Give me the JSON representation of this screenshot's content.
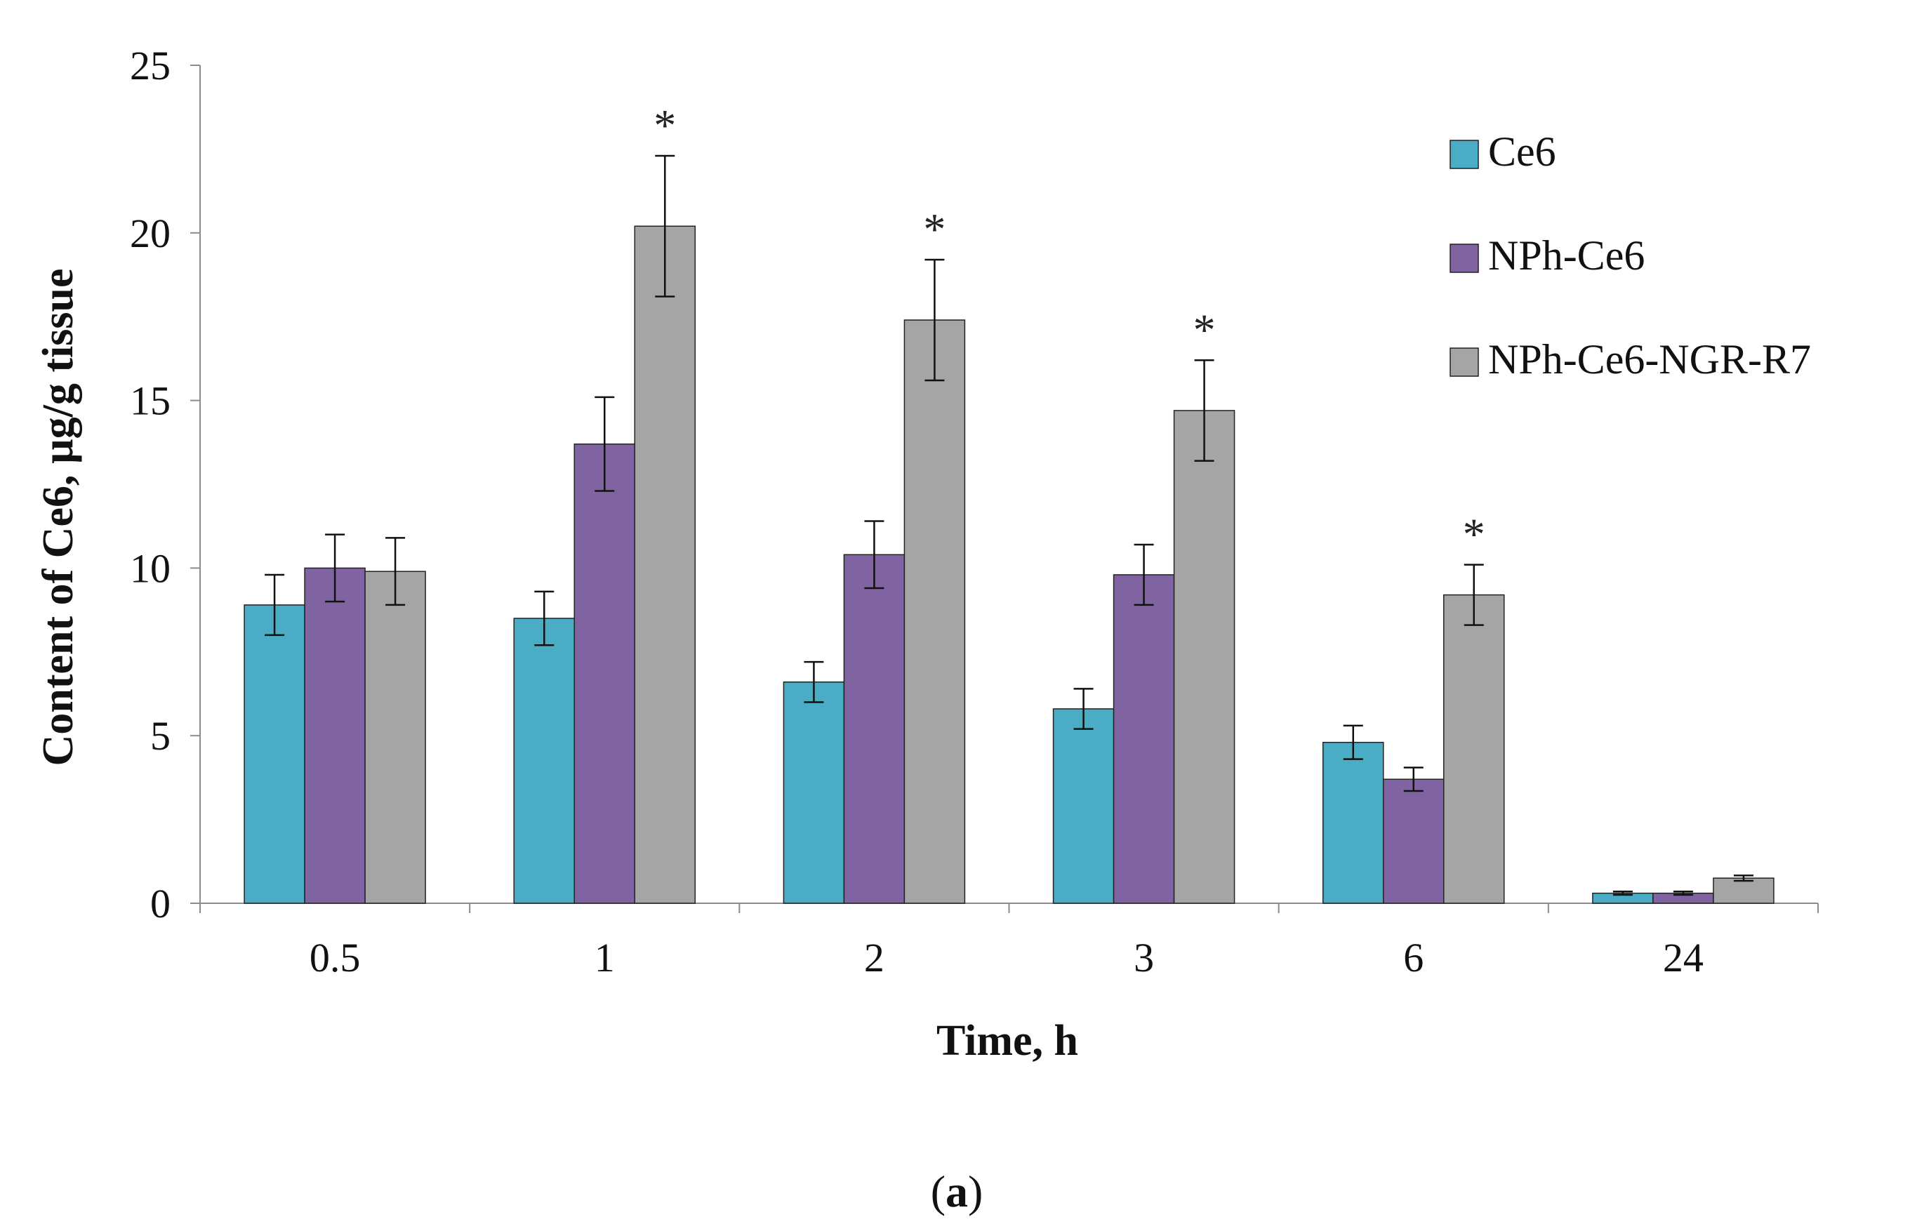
{
  "chart_data": {
    "type": "bar",
    "title": "",
    "xlabel": "Time, h",
    "ylabel": "Content of Ce6, µg/g tissue",
    "categories": [
      "0.5",
      "1",
      "2",
      "3",
      "6",
      "24"
    ],
    "ylim": [
      0,
      25
    ],
    "yticks": [
      0,
      5,
      10,
      15,
      20,
      25
    ],
    "grid": false,
    "legend_position": "top-right",
    "series": [
      {
        "name": "Ce6",
        "color": "#4bacc6",
        "values": [
          8.9,
          8.5,
          6.6,
          5.8,
          4.8,
          0.3
        ],
        "errors": [
          0.9,
          0.8,
          0.6,
          0.6,
          0.5,
          0.05
        ]
      },
      {
        "name": "NPh-Ce6",
        "color": "#8064a2",
        "values": [
          10.0,
          13.7,
          10.4,
          9.8,
          3.7,
          0.3
        ],
        "errors": [
          1.0,
          1.4,
          1.0,
          0.9,
          0.35,
          0.05
        ]
      },
      {
        "name": "NPh-Ce6-NGR-R7",
        "color": "#a5a5a5",
        "values": [
          9.9,
          20.2,
          17.4,
          14.7,
          9.2,
          0.75
        ],
        "errors": [
          1.0,
          2.1,
          1.8,
          1.5,
          0.9,
          0.08
        ]
      }
    ],
    "significance": [
      {
        "category": "1",
        "series": "NPh-Ce6-NGR-R7",
        "mark": "*"
      },
      {
        "category": "2",
        "series": "NPh-Ce6-NGR-R7",
        "mark": "*"
      },
      {
        "category": "3",
        "series": "NPh-Ce6-NGR-R7",
        "mark": "*"
      },
      {
        "category": "6",
        "series": "NPh-Ce6-NGR-R7",
        "mark": "*"
      }
    ]
  },
  "panel_label": {
    "open": "(",
    "letter": "a",
    "close": ")"
  }
}
